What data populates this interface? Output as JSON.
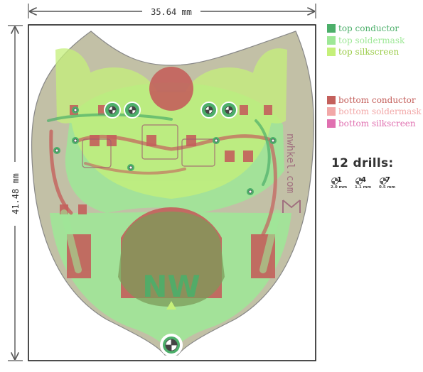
{
  "dimensions": {
    "width_label": "35.64 mm",
    "height_label": "41.48 mm"
  },
  "legend": {
    "top_conductor": "top conductor",
    "top_soldermask": "top soldermask",
    "top_silkscreen": "top silkscreen",
    "bottom_conductor": "bottom conductor",
    "bottom_soldermask": "bottom soldermask",
    "bottom_silkscreen": "bottom silkscreen"
  },
  "drills": {
    "title": "12 drills:",
    "items": [
      {
        "count": "1",
        "size": "2.0 mm"
      },
      {
        "count": "4",
        "size": "1.1 mm"
      },
      {
        "count": "7",
        "size": "0.5 mm"
      }
    ]
  },
  "board": {
    "silk_text": "NW",
    "side_text": "nwhkel.com"
  },
  "colors": {
    "top_conductor": "#4caf6a",
    "top_soldermask": "#9ee897",
    "top_silkscreen": "#c5f07a",
    "bottom_conductor": "#c4605c",
    "bottom_soldermask": "#f2a8a8",
    "bottom_silkscreen": "#e070b0",
    "board": "#c2c0a6"
  }
}
